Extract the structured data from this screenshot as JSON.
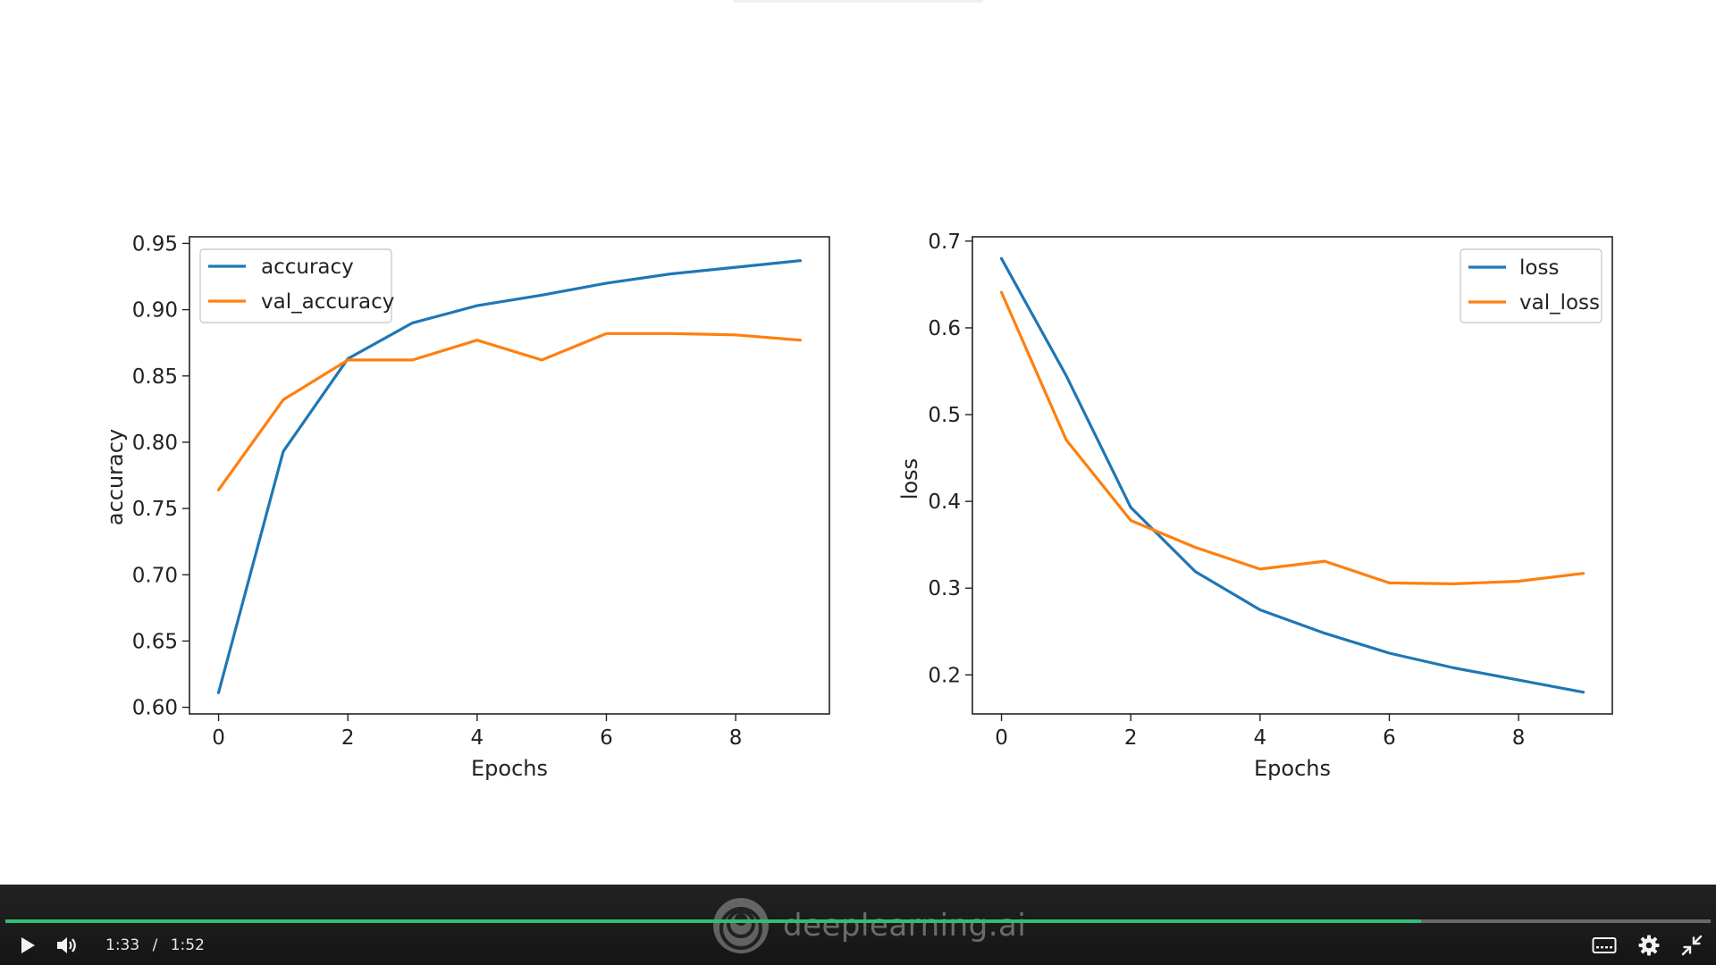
{
  "charts": {
    "accuracy": {
      "legend_entries": [
        "accuracy",
        "val_accuracy"
      ],
      "xlabel": "Epochs",
      "ylabel": "accuracy",
      "x_tick_labels": [
        "0",
        "2",
        "4",
        "6",
        "8"
      ],
      "y_tick_labels": [
        "0.60",
        "0.65",
        "0.70",
        "0.75",
        "0.80",
        "0.85",
        "0.90",
        "0.95"
      ]
    },
    "loss": {
      "legend_entries": [
        "loss",
        "val_loss"
      ],
      "xlabel": "Epochs",
      "ylabel": "loss",
      "x_tick_labels": [
        "0",
        "2",
        "4",
        "6",
        "8"
      ],
      "y_tick_labels": [
        "0.2",
        "0.3",
        "0.4",
        "0.5",
        "0.6",
        "0.7"
      ]
    }
  },
  "chart_data": [
    {
      "type": "line",
      "title": "",
      "xlabel": "Epochs",
      "ylabel": "accuracy",
      "xlim": [
        -0.45,
        9.45
      ],
      "ylim": [
        0.595,
        0.955
      ],
      "x": [
        0,
        1,
        2,
        3,
        4,
        5,
        6,
        7,
        8,
        9
      ],
      "series": [
        {
          "name": "accuracy",
          "color": "#1f77b4",
          "values": [
            0.611,
            0.793,
            0.863,
            0.89,
            0.903,
            0.911,
            0.92,
            0.927,
            0.932,
            0.937
          ]
        },
        {
          "name": "val_accuracy",
          "color": "#ff7f0e",
          "values": [
            0.764,
            0.832,
            0.862,
            0.862,
            0.877,
            0.862,
            0.882,
            0.882,
            0.881,
            0.877
          ]
        }
      ],
      "x_ticks": [
        0,
        2,
        4,
        6,
        8
      ],
      "y_ticks": [
        0.6,
        0.65,
        0.7,
        0.75,
        0.8,
        0.85,
        0.9,
        0.95
      ],
      "legend_position": "upper-left",
      "grid": false
    },
    {
      "type": "line",
      "title": "",
      "xlabel": "Epochs",
      "ylabel": "loss",
      "xlim": [
        -0.45,
        9.45
      ],
      "ylim": [
        0.155,
        0.705
      ],
      "x": [
        0,
        1,
        2,
        3,
        4,
        5,
        6,
        7,
        8,
        9
      ],
      "series": [
        {
          "name": "loss",
          "color": "#1f77b4",
          "values": [
            0.68,
            0.545,
            0.393,
            0.319,
            0.275,
            0.248,
            0.225,
            0.208,
            0.194,
            0.18
          ]
        },
        {
          "name": "val_loss",
          "color": "#ff7f0e",
          "values": [
            0.641,
            0.471,
            0.378,
            0.347,
            0.322,
            0.331,
            0.306,
            0.305,
            0.308,
            0.317
          ]
        }
      ],
      "x_ticks": [
        0,
        2,
        4,
        6,
        8
      ],
      "y_ticks": [
        0.2,
        0.3,
        0.4,
        0.5,
        0.6,
        0.7
      ],
      "legend_position": "upper-right",
      "grid": false
    }
  ],
  "player": {
    "current_time": "1:33",
    "separator": "/",
    "duration": "1:52",
    "progress_fraction": 0.83,
    "progress_color": "#2fbf71",
    "watermark": "deeplearning.ai",
    "controls": {
      "play": "play-icon",
      "volume": "volume-icon",
      "captions": "captions-icon",
      "settings": "gear-icon",
      "exit_fullscreen": "exit-fullscreen-icon"
    }
  }
}
